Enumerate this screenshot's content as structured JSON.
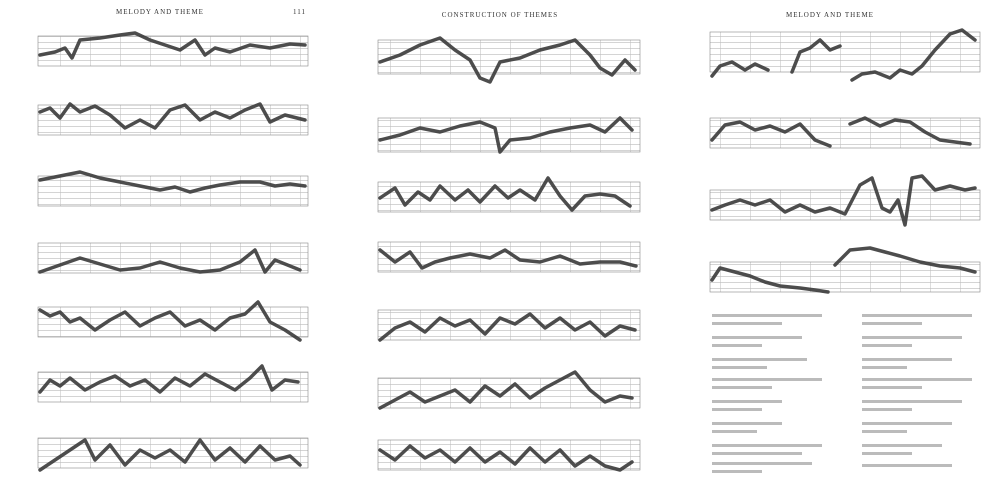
{
  "pages": [
    {
      "header": "MELODY AND THEME",
      "page_number": "111"
    },
    {
      "header": "CONSTRUCTION OF THEMES"
    },
    {
      "header": "MELODY AND THEME"
    }
  ]
}
